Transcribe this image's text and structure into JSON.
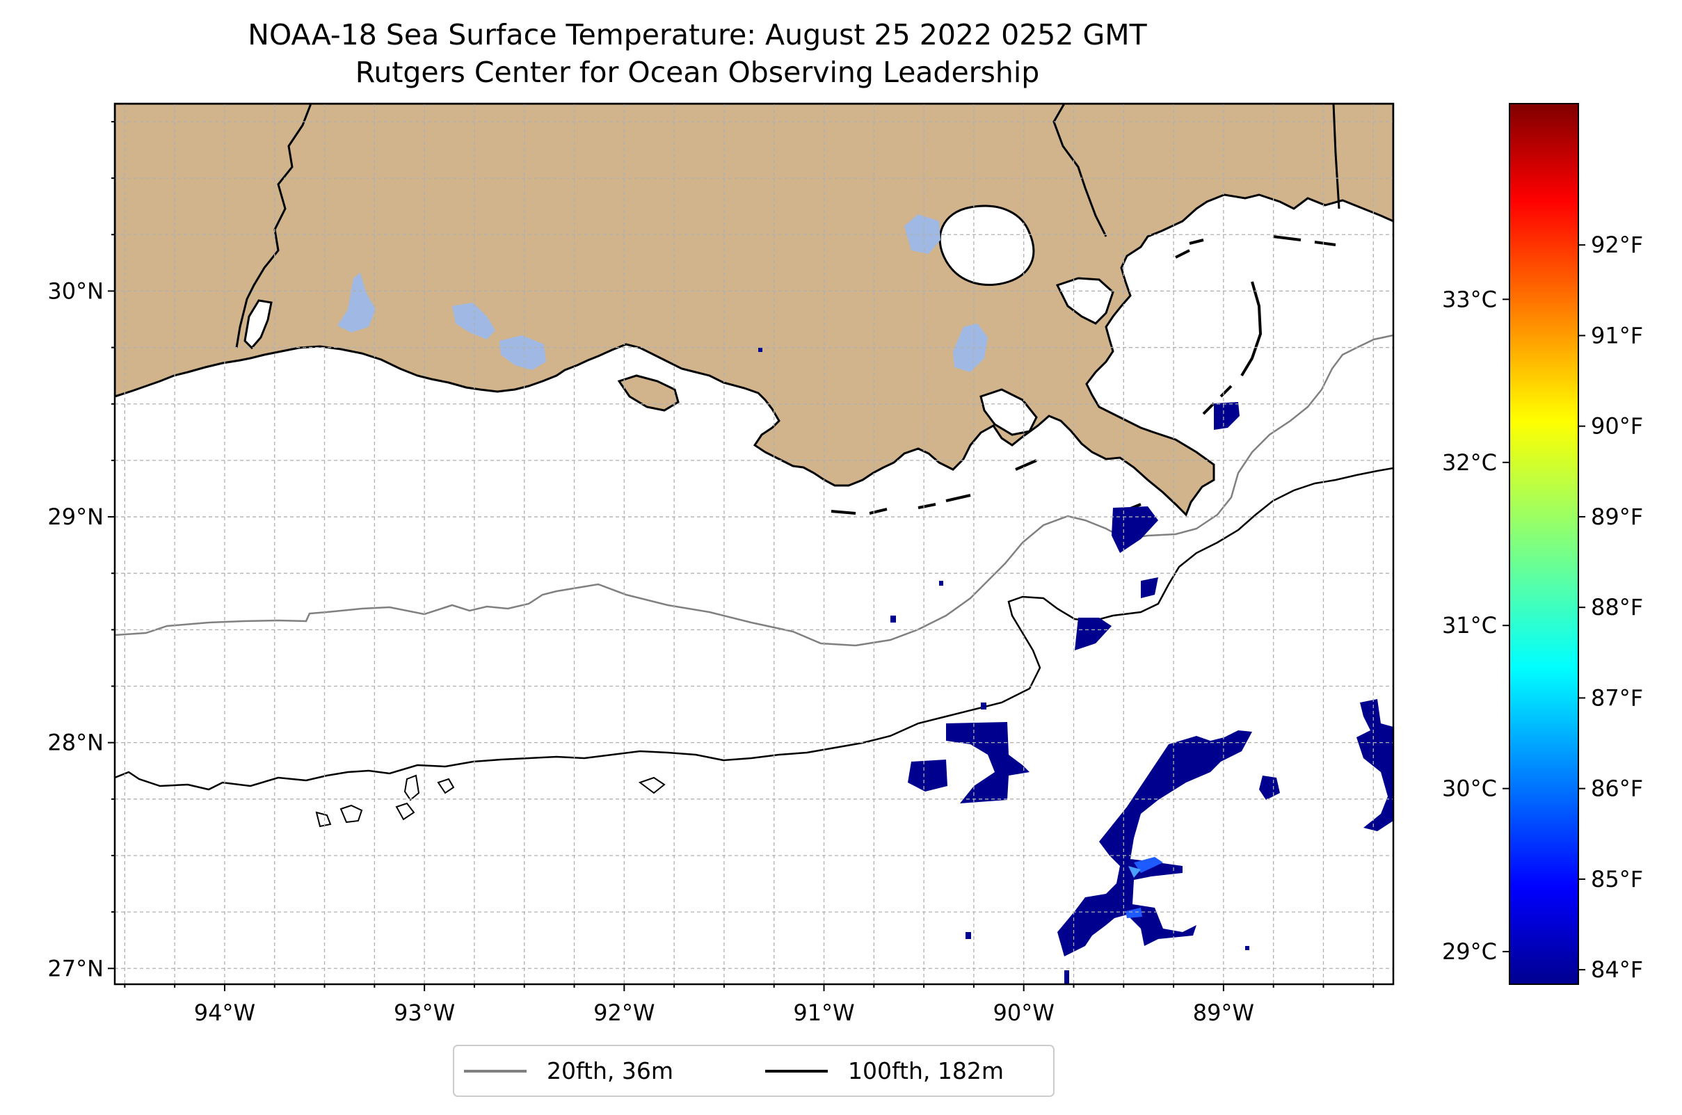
{
  "title": {
    "line1": "NOAA-18 Sea Surface Temperature: August 25 2022 0252 GMT",
    "line2": "Rutgers Center for Ocean Observing Leadership"
  },
  "map": {
    "lon_range": [
      -94.55,
      -88.15
    ],
    "lat_range": [
      26.93,
      30.83
    ],
    "lon_ticks": [
      {
        "value": -94,
        "label": "94°W"
      },
      {
        "value": -93,
        "label": "93°W"
      },
      {
        "value": -92,
        "label": "92°W"
      },
      {
        "value": -91,
        "label": "91°W"
      },
      {
        "value": -90,
        "label": "90°W"
      },
      {
        "value": -89,
        "label": "89°W"
      }
    ],
    "lat_ticks": [
      {
        "value": 30,
        "label": "30°N"
      },
      {
        "value": 29,
        "label": "29°N"
      },
      {
        "value": 28,
        "label": "28°N"
      },
      {
        "value": 27,
        "label": "27°N"
      }
    ],
    "land_color": "#d2b48c",
    "lake_color": "#9fb9e4",
    "isobath_20_color": "#808080",
    "isobath_100_color": "#000000"
  },
  "colorbar": {
    "colormap": "jet",
    "range_c": [
      28.8,
      34.2
    ],
    "celsius_ticks": [
      {
        "value": 29,
        "label": "29°C"
      },
      {
        "value": 30,
        "label": "30°C"
      },
      {
        "value": 31,
        "label": "31°C"
      },
      {
        "value": 32,
        "label": "32°C"
      },
      {
        "value": 33,
        "label": "33°C"
      }
    ],
    "fahrenheit_ticks": [
      {
        "value": 84,
        "label": "84°F"
      },
      {
        "value": 85,
        "label": "85°F"
      },
      {
        "value": 86,
        "label": "86°F"
      },
      {
        "value": 87,
        "label": "87°F"
      },
      {
        "value": 88,
        "label": "88°F"
      },
      {
        "value": 89,
        "label": "89°F"
      },
      {
        "value": 90,
        "label": "90°F"
      },
      {
        "value": 91,
        "label": "91°F"
      },
      {
        "value": 92,
        "label": "92°F"
      }
    ]
  },
  "legend": {
    "items": [
      {
        "label": "20fth, 36m",
        "color": "#808080"
      },
      {
        "label": "100fth, 182m",
        "color": "#000000"
      }
    ]
  }
}
